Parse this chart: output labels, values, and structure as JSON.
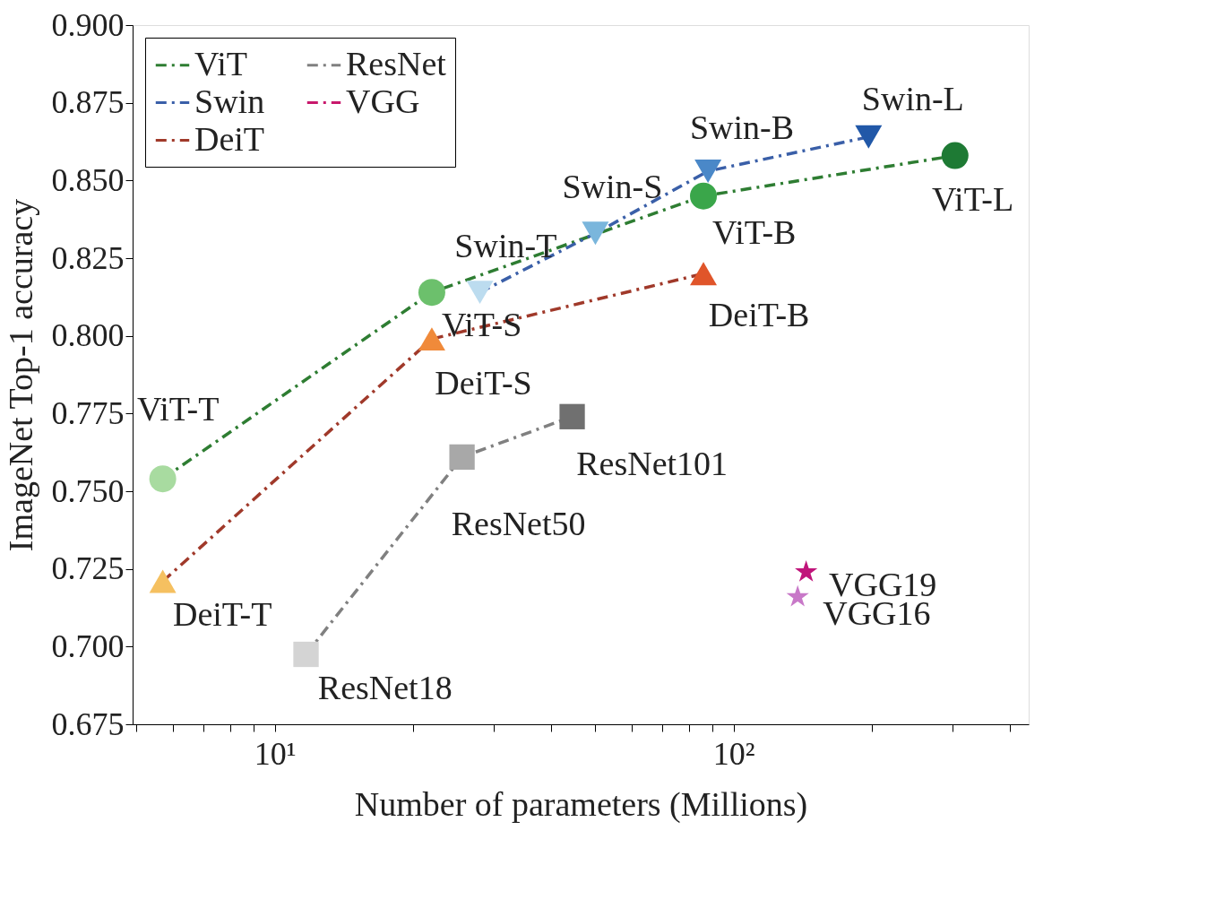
{
  "chart_data": {
    "type": "line",
    "xlabel": "Number of parameters (Millions)",
    "ylabel": "ImageNet Top-1 accuracy",
    "log": "x",
    "grid": false,
    "legend": "top left",
    "line_style": "dashed",
    "xlim": [
      4.9,
      440
    ],
    "xticks": [
      {
        "value": 5,
        "label": null
      },
      {
        "value": 6,
        "label": null
      },
      {
        "value": 7,
        "label": null
      },
      {
        "value": 8,
        "label": null
      },
      {
        "value": 9,
        "label": null
      },
      {
        "value": 10,
        "label": "10¹"
      },
      {
        "value": 20,
        "label": null
      },
      {
        "value": 30,
        "label": null
      },
      {
        "value": 40,
        "label": null
      },
      {
        "value": 50,
        "label": null
      },
      {
        "value": 60,
        "label": null
      },
      {
        "value": 70,
        "label": null
      },
      {
        "value": 80,
        "label": null
      },
      {
        "value": 90,
        "label": null
      },
      {
        "value": 100,
        "label": "10²"
      },
      {
        "value": 200,
        "label": null
      },
      {
        "value": 300,
        "label": null
      },
      {
        "value": 400,
        "label": null
      }
    ],
    "ylim": [
      0.675,
      0.9
    ],
    "yticks": [
      {
        "value": 0.675,
        "label": "0.675"
      },
      {
        "value": 0.7,
        "label": "0.700"
      },
      {
        "value": 0.725,
        "label": "0.725"
      },
      {
        "value": 0.75,
        "label": "0.750"
      },
      {
        "value": 0.775,
        "label": "0.775"
      },
      {
        "value": 0.8,
        "label": "0.800"
      },
      {
        "value": 0.825,
        "label": "0.825"
      },
      {
        "value": 0.85,
        "label": "0.850"
      },
      {
        "value": 0.875,
        "label": "0.875"
      },
      {
        "value": 0.9,
        "label": "0.900"
      }
    ],
    "series": [
      {
        "name": "ViT",
        "color": "#2e7d32",
        "marker": "circle",
        "x": [
          5.7,
          22,
          86,
          304
        ],
        "values": [
          0.754,
          0.814,
          0.845,
          0.858
        ],
        "colors": [
          "#a8dba0",
          "#6cc06c",
          "#3aa64a",
          "#1e7a34"
        ]
      },
      {
        "name": "Swin",
        "color": "#3a5fa8",
        "marker": "triangle-down",
        "x": [
          28,
          50,
          88,
          197
        ],
        "values": [
          0.814,
          0.833,
          0.853,
          0.864
        ],
        "colors": [
          "#bcdcef",
          "#7ab6dc",
          "#4a88c8",
          "#2158a8"
        ]
      },
      {
        "name": "DeiT",
        "color": "#a0392a",
        "marker": "triangle",
        "x": [
          5.7,
          22,
          86
        ],
        "values": [
          0.721,
          0.799,
          0.82
        ],
        "colors": [
          "#f5c060",
          "#f08a3a",
          "#e0552a"
        ]
      },
      {
        "name": "ResNet",
        "color": "#808080",
        "marker": "square",
        "x": [
          11.7,
          25.6,
          44.5
        ],
        "values": [
          0.6975,
          0.761,
          0.774
        ],
        "colors": [
          "#d4d4d4",
          "#a8a8a8",
          "#707070"
        ]
      },
      {
        "name": "VGG",
        "type": "scatter",
        "color": "#c8186c",
        "marker": "star",
        "x": [
          144,
          138
        ],
        "values": [
          0.724,
          0.716
        ],
        "colors": [
          "#c0147a",
          "#c878c8"
        ]
      }
    ],
    "annotations": [
      {
        "text": "ViT-T",
        "x": 5.7,
        "y": 0.754
      },
      {
        "text": "ViT-S",
        "x": 22,
        "y": 0.814
      },
      {
        "text": "ViT-B",
        "x": 86,
        "y": 0.845
      },
      {
        "text": "ViT-L",
        "x": 304,
        "y": 0.858
      },
      {
        "text": "Swin-T",
        "x": 28,
        "y": 0.814
      },
      {
        "text": "Swin-S",
        "x": 50,
        "y": 0.833
      },
      {
        "text": "Swin-B",
        "x": 88,
        "y": 0.853
      },
      {
        "text": "Swin-L",
        "x": 197,
        "y": 0.864
      },
      {
        "text": "DeiT-T",
        "x": 5.7,
        "y": 0.721
      },
      {
        "text": "DeiT-S",
        "x": 22,
        "y": 0.799
      },
      {
        "text": "DeiT-B",
        "x": 86,
        "y": 0.82
      },
      {
        "text": "ResNet18",
        "x": 11.7,
        "y": 0.6975
      },
      {
        "text": "ResNet50",
        "x": 25.6,
        "y": 0.761
      },
      {
        "text": "ResNet101",
        "x": 44.5,
        "y": 0.774
      },
      {
        "text": "VGG19",
        "x": 144,
        "y": 0.724
      },
      {
        "text": "VGG16",
        "x": 138,
        "y": 0.716
      }
    ]
  }
}
